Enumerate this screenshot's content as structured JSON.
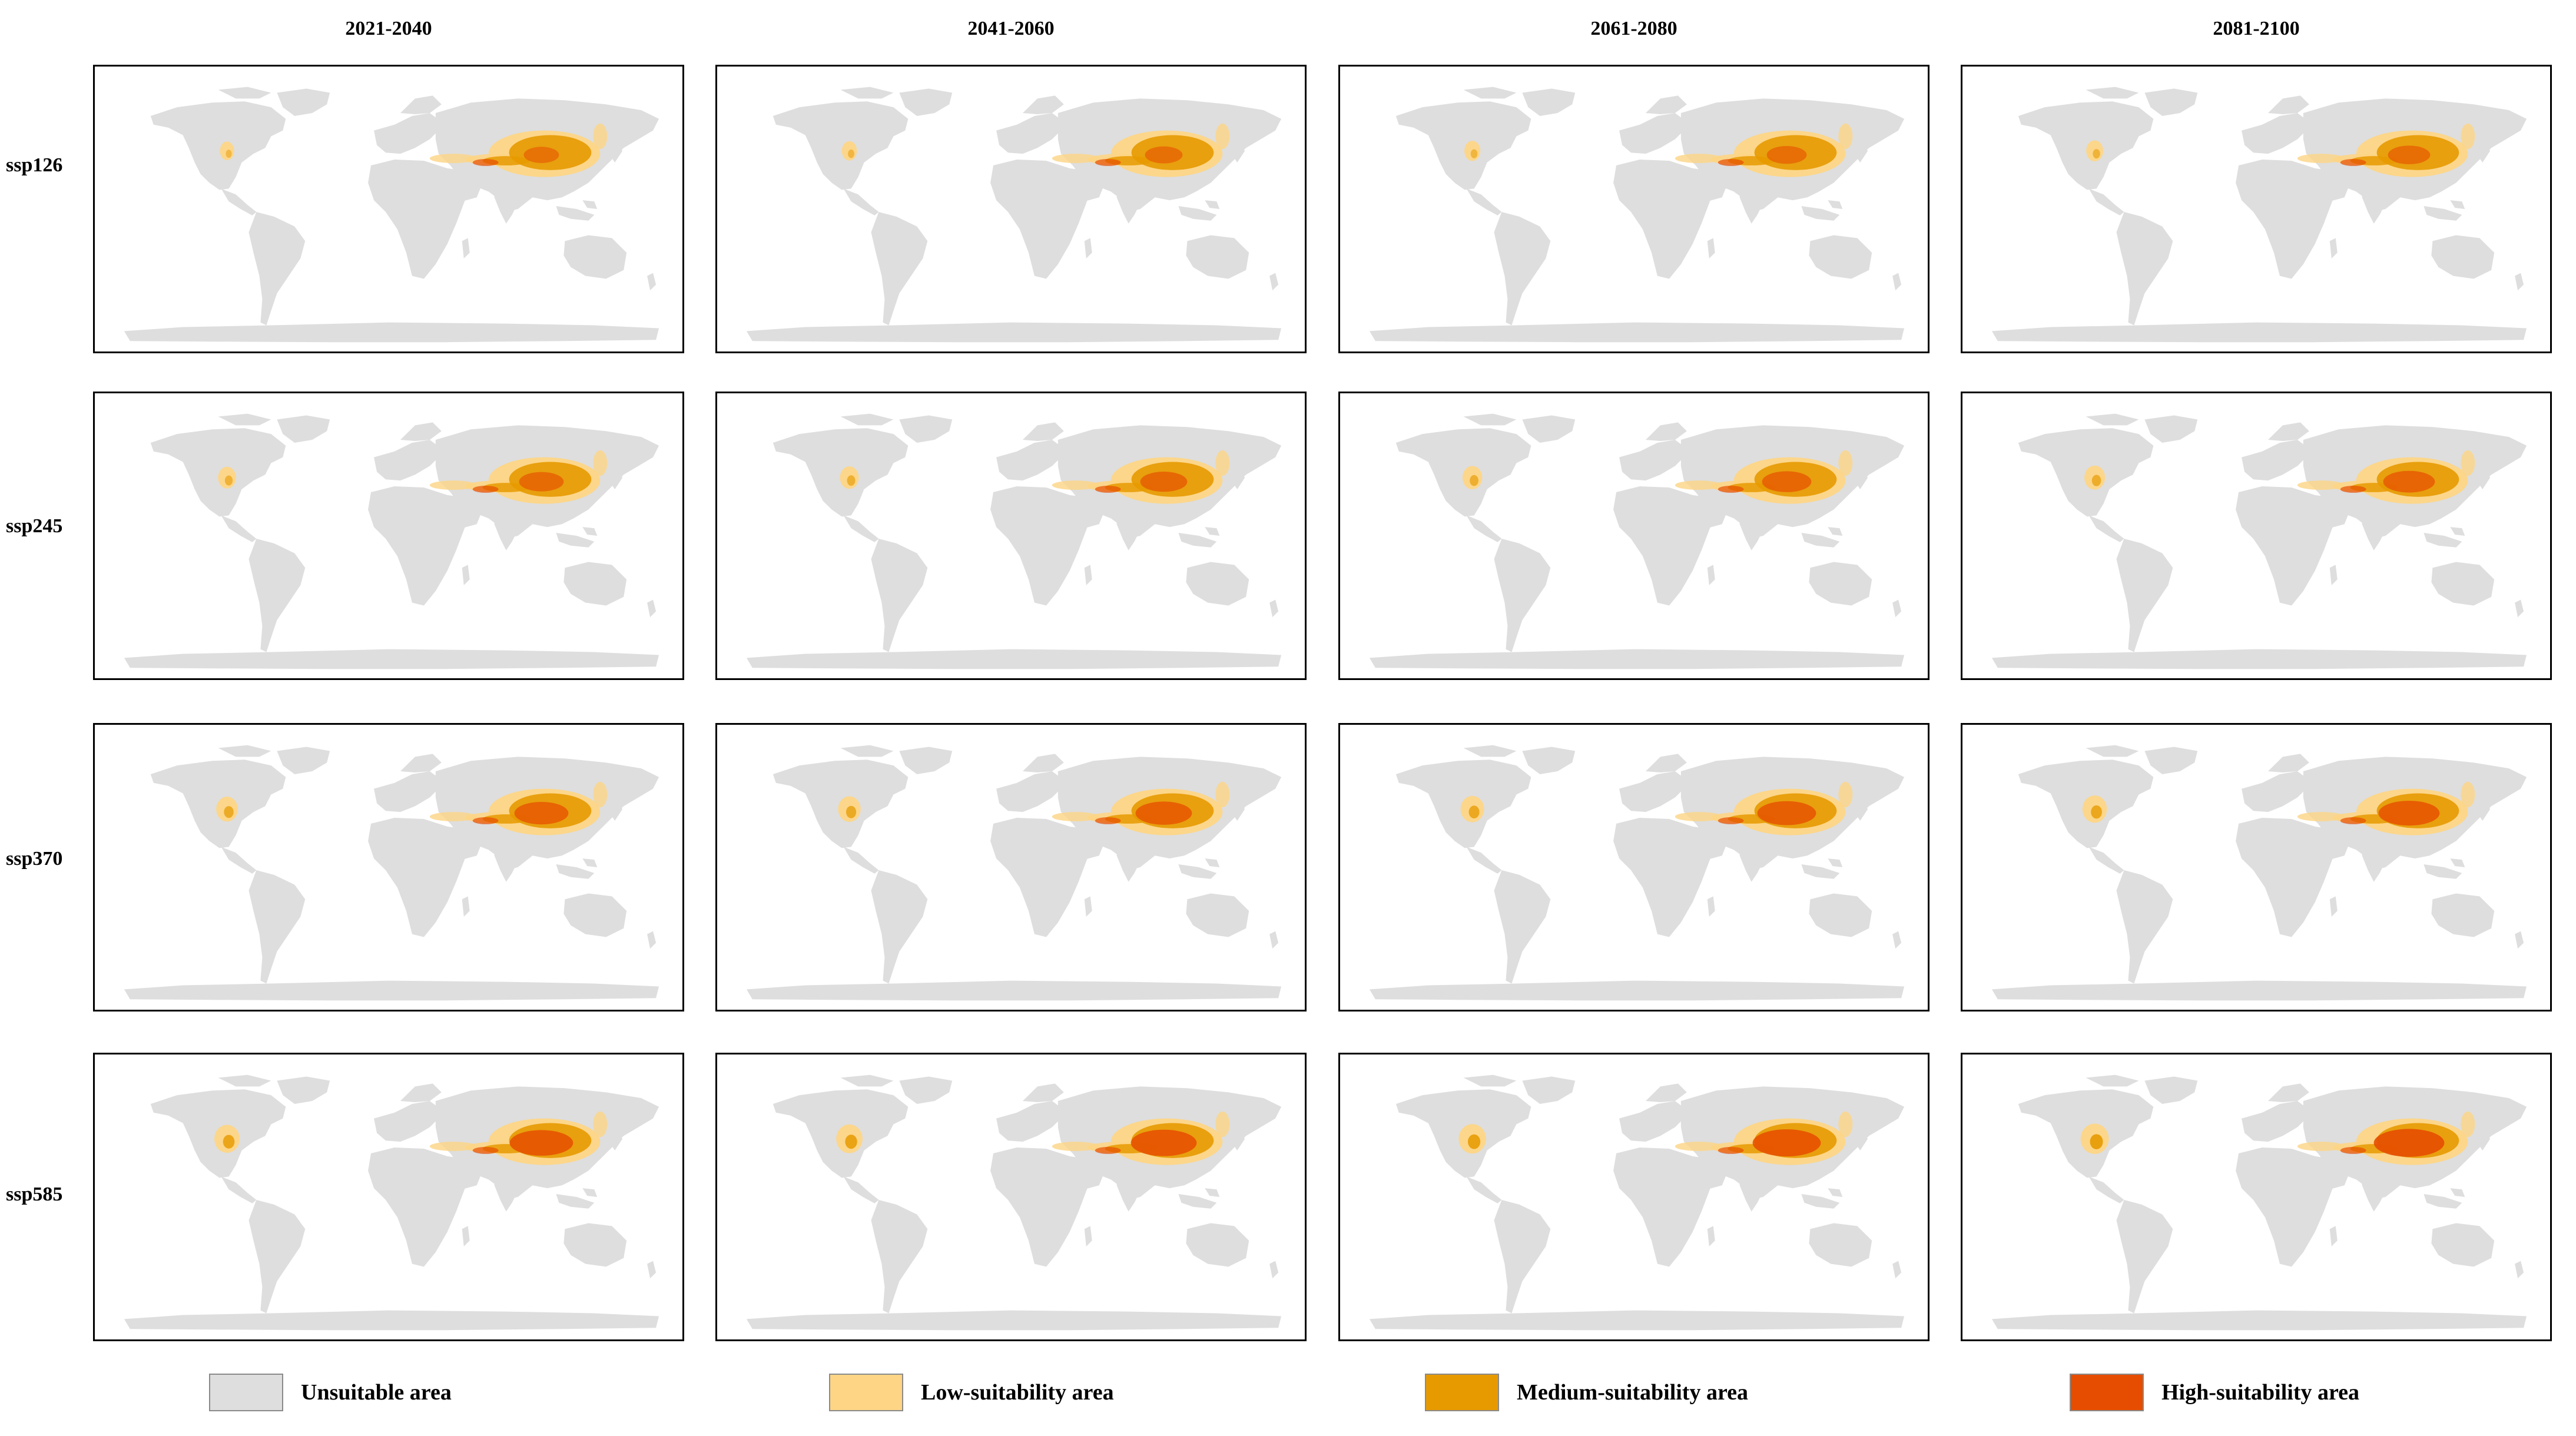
{
  "columns": [
    "2021-2040",
    "2041-2060",
    "2061-2080",
    "2081-2100"
  ],
  "rows": [
    "ssp126",
    "ssp245",
    "ssp370",
    "ssp585"
  ],
  "colors": {
    "unsuitable": "#dedede",
    "low": "#fdd585",
    "medium": "#e69a00",
    "high": "#e64d00"
  },
  "legend": [
    {
      "label": "Unsuitable area",
      "color": "#dedede"
    },
    {
      "label": "Low-suitability area",
      "color": "#fdd585"
    },
    {
      "label": "Medium-suitability area",
      "color": "#e69a00"
    },
    {
      "label": "High-suitability area",
      "color": "#e64d00"
    }
  ]
}
